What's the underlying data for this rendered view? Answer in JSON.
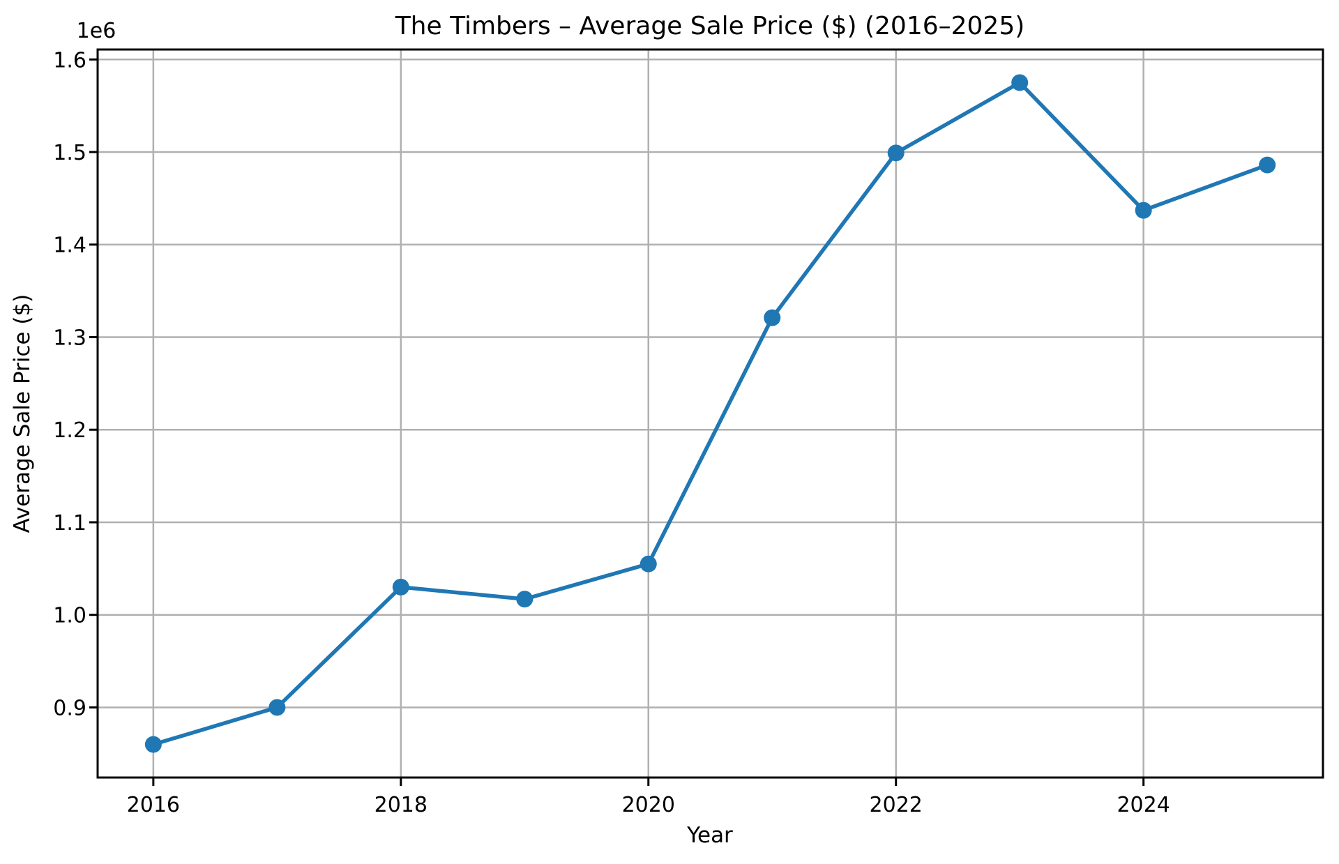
{
  "chart_data": {
    "type": "line",
    "title": "The Timbers – Average Sale Price ($) (2016–2025)",
    "xlabel": "Year",
    "ylabel": "Average Sale Price ($)",
    "y_offset_label": "1e6",
    "series": [
      {
        "name": "Average Sale Price ($)",
        "x": [
          2016,
          2017,
          2018,
          2019,
          2020,
          2021,
          2022,
          2023,
          2024,
          2025
        ],
        "y": [
          860000,
          900000,
          1030000,
          1017000,
          1055000,
          1321000,
          1499000,
          1575000,
          1437000,
          1486000
        ]
      }
    ],
    "x_ticks": [
      2016,
      2018,
      2020,
      2022,
      2024
    ],
    "x_tick_labels": [
      "2016",
      "2018",
      "2020",
      "2022",
      "2024"
    ],
    "y_ticks": [
      900000,
      1000000,
      1100000,
      1200000,
      1300000,
      1400000,
      1500000,
      1600000
    ],
    "y_tick_labels": [
      "0.9",
      "1.0",
      "1.1",
      "1.2",
      "1.3",
      "1.4",
      "1.5",
      "1.6"
    ],
    "xlim": [
      2015.55,
      2025.45
    ],
    "ylim": [
      824250,
      1610750
    ],
    "grid": true,
    "legend": false,
    "marker": "o",
    "colors": {
      "line": "#1f77b4",
      "marker": "#1f77b4",
      "grid": "#b0b0b0",
      "axis": "#000000",
      "background": "#ffffff"
    }
  }
}
